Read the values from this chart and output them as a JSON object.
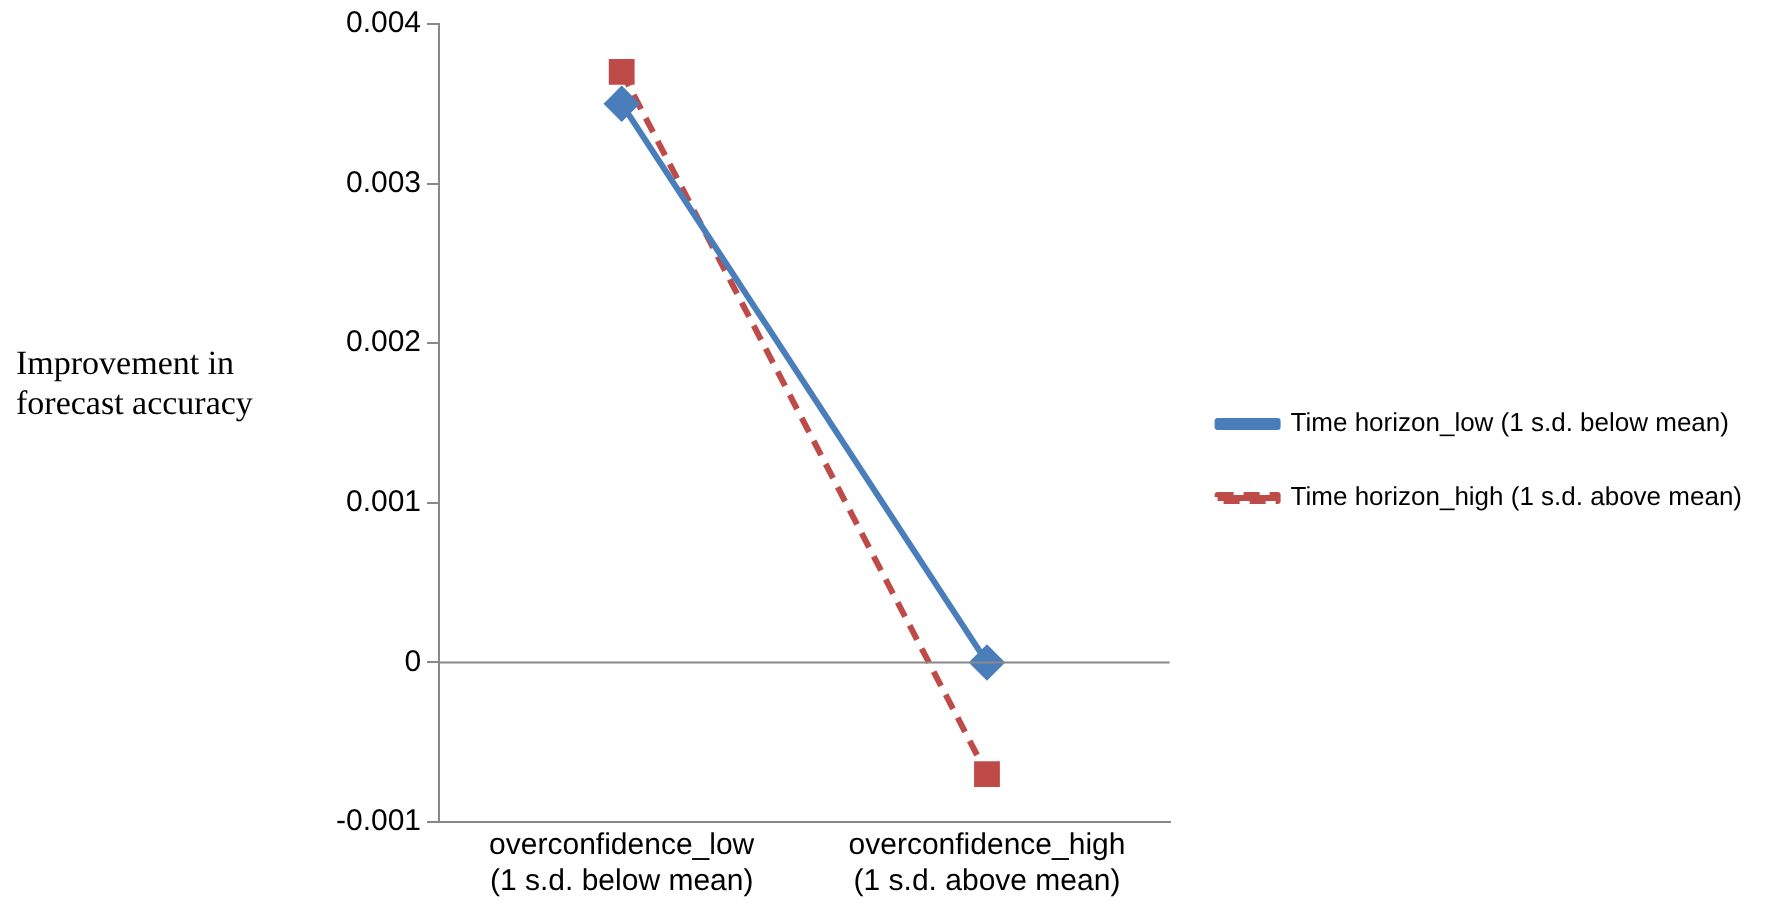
{
  "chart_data": {
    "type": "line",
    "ylabel": "Improvement in forecast accuracy",
    "categories": [
      "overconfidence_low (1 s.d. below mean)",
      "overconfidence_high (1 s.d. above mean)"
    ],
    "series": [
      {
        "name": "Time horizon_low (1 s.d. below mean)",
        "color": "#4a7ebb",
        "values": [
          0.0035,
          0
        ],
        "marker": "diamond",
        "line_style": "solid"
      },
      {
        "name": "Time horizon_high (1 s.d. above mean)",
        "color": "#be4b48",
        "values": [
          0.0037,
          -0.0007
        ],
        "marker": "square",
        "line_style": "dashed"
      }
    ],
    "ref_lines": [
      {
        "axis": "y",
        "value": 0,
        "color": "#888888"
      }
    ],
    "ylim": [
      -0.001,
      0.004
    ],
    "yticks": [
      -0.001,
      0,
      0.001,
      0.002,
      0.003,
      0.004
    ],
    "grid": false,
    "legend": "right"
  }
}
